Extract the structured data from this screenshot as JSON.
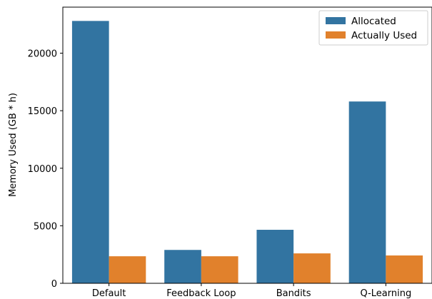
{
  "chart_data": {
    "type": "bar",
    "title": "",
    "xlabel": "",
    "ylabel": "Memory Used (GB * h)",
    "categories": [
      "Default",
      "Feedback Loop",
      "Bandits",
      "Q-Learning"
    ],
    "series": [
      {
        "name": "Allocated",
        "color": "#3274a1",
        "values": [
          22800,
          2900,
          4650,
          15800
        ]
      },
      {
        "name": "Actually Used",
        "color": "#e1812c",
        "values": [
          2350,
          2350,
          2600,
          2420
        ]
      }
    ],
    "ylim": [
      0,
      24000
    ],
    "yticks": [
      0,
      5000,
      10000,
      15000,
      20000
    ],
    "ytick_labels": [
      "0",
      "5000",
      "10000",
      "15000",
      "20000"
    ],
    "grid": false,
    "legend_position": "top-right"
  }
}
